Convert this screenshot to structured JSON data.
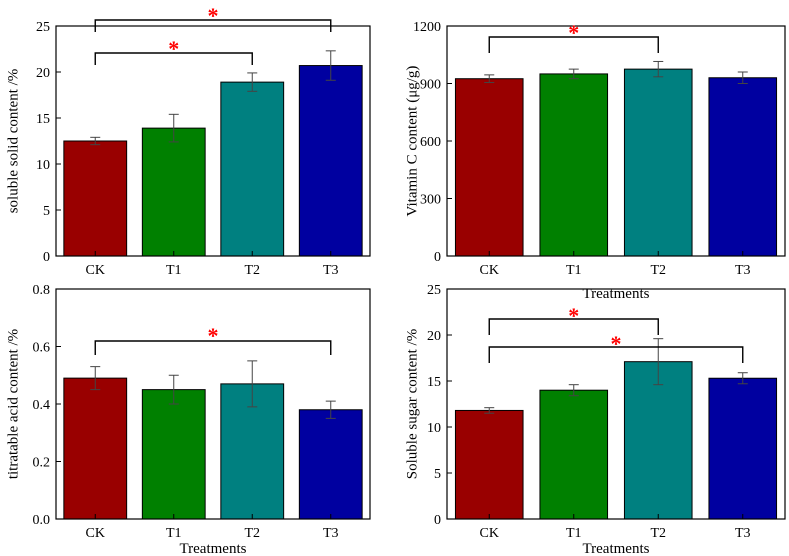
{
  "figure": {
    "star_color": "#FF0000",
    "bar_colors": [
      "#990000",
      "#008000",
      "#008080",
      "#0000A0"
    ]
  },
  "chart_data": [
    {
      "id": "a",
      "type": "bar",
      "title": "",
      "xlabel": "",
      "ylabel": "soluble solid content /%",
      "categories": [
        "CK",
        "T1",
        "T2",
        "T3"
      ],
      "values": [
        12.5,
        13.9,
        18.9,
        20.7
      ],
      "errors": [
        0.4,
        1.5,
        1.0,
        1.6
      ],
      "ylim": [
        0,
        25
      ],
      "yticks": [
        "0",
        "5",
        "10",
        "15",
        "20",
        "25"
      ],
      "significance": [
        {
          "from": "CK",
          "to": "T3",
          "label": "*"
        },
        {
          "from": "CK",
          "to": "T2",
          "label": "*"
        }
      ]
    },
    {
      "id": "b",
      "type": "bar",
      "title": "",
      "xlabel": "Treatments",
      "ylabel": "Vitamin C content (μg/g)",
      "categories": [
        "CK",
        "T1",
        "T2",
        "T3"
      ],
      "values": [
        925,
        950,
        975,
        930
      ],
      "errors": [
        20,
        25,
        40,
        30
      ],
      "ylim": [
        0,
        1200
      ],
      "yticks": [
        "0",
        "300",
        "600",
        "900",
        "1200"
      ],
      "significance": [
        {
          "from": "CK",
          "to": "T2",
          "label": "*"
        }
      ]
    },
    {
      "id": "c",
      "type": "bar",
      "title": "",
      "xlabel": "Treatments",
      "ylabel": "titratable acid content /%",
      "categories": [
        "CK",
        "T1",
        "T2",
        "T3"
      ],
      "values": [
        0.49,
        0.45,
        0.47,
        0.38
      ],
      "errors": [
        0.04,
        0.05,
        0.08,
        0.03
      ],
      "ylim": [
        0,
        0.8
      ],
      "yticks": [
        "0.0",
        "0.2",
        "0.4",
        "0.6",
        "0.8"
      ],
      "significance": [
        {
          "from": "CK",
          "to": "T3",
          "label": "*"
        }
      ]
    },
    {
      "id": "d",
      "type": "bar",
      "title": "",
      "xlabel": "Treatments",
      "ylabel": "Soluble sugar content /%",
      "categories": [
        "CK",
        "T1",
        "T2",
        "T3"
      ],
      "values": [
        11.8,
        14.0,
        17.1,
        15.3
      ],
      "errors": [
        0.3,
        0.6,
        2.5,
        0.6
      ],
      "ylim": [
        0,
        25
      ],
      "yticks": [
        "0",
        "5",
        "10",
        "15",
        "20",
        "25"
      ],
      "significance": [
        {
          "from": "CK",
          "to": "T2",
          "label": "*"
        },
        {
          "from": "CK",
          "to": "T3",
          "label": "*"
        }
      ]
    }
  ]
}
